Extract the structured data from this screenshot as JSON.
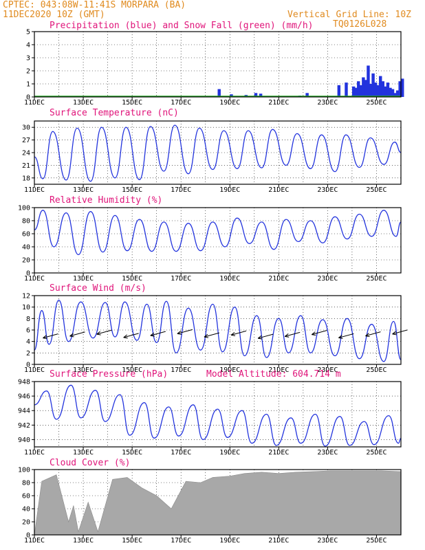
{
  "header": {
    "line1": "CPTEC:  043:08W-11:41S  MORPARA (BA)",
    "date": "11DEC2020 10Z (GMT)",
    "grid_note": "Vertical Grid Line: 10Z",
    "code": "TQ0126L028"
  },
  "x_ticks": [
    "11DEC",
    "13DEC",
    "15DEC",
    "17DEC",
    "19DEC",
    "21DEC",
    "23DEC",
    "25DEC"
  ],
  "panels": {
    "precip": {
      "title": "Precipitation (blue) and Snow Fall (green) (mm/h)",
      "yticks": [
        0,
        1,
        2,
        3,
        4,
        5
      ]
    },
    "temp": {
      "title": "Surface Temperature (nC)",
      "yticks": [
        18,
        21,
        24,
        27,
        30
      ]
    },
    "rh": {
      "title": "Relative Humidity (%)",
      "yticks": [
        0,
        20,
        40,
        60,
        80,
        100
      ]
    },
    "wind": {
      "title": "Surface Wind (m/s)",
      "yticks": [
        0,
        2,
        4,
        6,
        8,
        10,
        12
      ]
    },
    "pres": {
      "title": "Surface Pressure (hPa)",
      "altitude": "Model Altitude: 604.714 m",
      "yticks": [
        940,
        942,
        944,
        946,
        948
      ]
    },
    "cloud": {
      "title": "Cloud Cover (%)",
      "yticks": [
        0,
        20,
        40,
        60,
        80,
        100
      ]
    }
  },
  "chart_data": [
    {
      "type": "bar",
      "title": "Precipitation (blue) and Snow Fall (green) (mm/h)",
      "ylim": [
        0,
        5
      ],
      "x_days": [
        7.5,
        8.0,
        8.6,
        9.0,
        9.2,
        10.8,
        11.1,
        12.4,
        12.7,
        13.0,
        13.1,
        13.2,
        13.3,
        13.4,
        13.5,
        13.6,
        13.7,
        13.8,
        13.9,
        14.0,
        14.1,
        14.2,
        14.3,
        14.4,
        14.5,
        14.6,
        14.7,
        14.8,
        14.9,
        15.0
      ],
      "values": [
        0.6,
        0.2,
        0.15,
        0.3,
        0.25,
        0.1,
        0.3,
        0.9,
        1.1,
        0.8,
        0.7,
        1.2,
        0.9,
        1.5,
        1.3,
        2.4,
        1.0,
        1.8,
        1.1,
        0.9,
        1.6,
        1.2,
        0.8,
        1.1,
        0.7,
        0.6,
        0.3,
        0.5,
        1.2,
        1.4
      ]
    },
    {
      "type": "line",
      "title": "Surface Temperature (nC)",
      "ylim": [
        16.5,
        31.5
      ],
      "points": [
        [
          0,
          23
        ],
        [
          0.35,
          17.8
        ],
        [
          0.75,
          29
        ],
        [
          1.3,
          17.5
        ],
        [
          1.75,
          29.8
        ],
        [
          2.3,
          17.2
        ],
        [
          2.75,
          30
        ],
        [
          3.3,
          18
        ],
        [
          3.75,
          30
        ],
        [
          4.3,
          17.6
        ],
        [
          4.75,
          30.2
        ],
        [
          5.3,
          19.6
        ],
        [
          5.75,
          30.5
        ],
        [
          6.3,
          19
        ],
        [
          6.75,
          29.8
        ],
        [
          7.3,
          20
        ],
        [
          7.75,
          29.2
        ],
        [
          8.3,
          20.2
        ],
        [
          8.75,
          29.2
        ],
        [
          9.3,
          20.4
        ],
        [
          9.75,
          29.5
        ],
        [
          10.3,
          21
        ],
        [
          10.75,
          28.5
        ],
        [
          11.3,
          20.2
        ],
        [
          11.75,
          28.2
        ],
        [
          12.3,
          19.5
        ],
        [
          12.75,
          28.2
        ],
        [
          13.3,
          20.5
        ],
        [
          13.75,
          27.5
        ],
        [
          14.3,
          21.2
        ],
        [
          14.75,
          26.5
        ],
        [
          15.0,
          24
        ]
      ]
    },
    {
      "type": "line",
      "title": "Relative Humidity (%)",
      "ylim": [
        0,
        100
      ],
      "points": [
        [
          0,
          66
        ],
        [
          0.35,
          96
        ],
        [
          0.8,
          40
        ],
        [
          1.3,
          92
        ],
        [
          1.8,
          28
        ],
        [
          2.3,
          94
        ],
        [
          2.8,
          32
        ],
        [
          3.3,
          88
        ],
        [
          3.8,
          34
        ],
        [
          4.3,
          82
        ],
        [
          4.8,
          33
        ],
        [
          5.3,
          78
        ],
        [
          5.8,
          33
        ],
        [
          6.3,
          76
        ],
        [
          6.8,
          34
        ],
        [
          7.3,
          78
        ],
        [
          7.8,
          40
        ],
        [
          8.3,
          84
        ],
        [
          8.8,
          45
        ],
        [
          9.3,
          78
        ],
        [
          9.8,
          36
        ],
        [
          10.3,
          82
        ],
        [
          10.8,
          48
        ],
        [
          11.3,
          80
        ],
        [
          11.8,
          46
        ],
        [
          12.3,
          86
        ],
        [
          12.8,
          52
        ],
        [
          13.3,
          90
        ],
        [
          13.8,
          56
        ],
        [
          14.3,
          96
        ],
        [
          14.8,
          56
        ],
        [
          15.0,
          78
        ]
      ]
    },
    {
      "type": "line",
      "title": "Surface Wind (m/s)",
      "ylim": [
        0,
        12
      ],
      "points": [
        [
          0,
          2.5
        ],
        [
          0.3,
          9.4
        ],
        [
          0.6,
          3.5
        ],
        [
          1.0,
          11.2
        ],
        [
          1.4,
          4.0
        ],
        [
          1.9,
          10.9
        ],
        [
          2.4,
          4.6
        ],
        [
          2.9,
          10.8
        ],
        [
          3.3,
          4.8
        ],
        [
          3.7,
          10.9
        ],
        [
          4.2,
          4.2
        ],
        [
          4.6,
          10.5
        ],
        [
          5.0,
          3.8
        ],
        [
          5.4,
          11.0
        ],
        [
          5.8,
          2.0
        ],
        [
          6.3,
          9.8
        ],
        [
          6.8,
          2.5
        ],
        [
          7.3,
          10.5
        ],
        [
          7.7,
          2.2
        ],
        [
          8.2,
          10.0
        ],
        [
          8.6,
          1.5
        ],
        [
          9.1,
          8.5
        ],
        [
          9.5,
          1.2
        ],
        [
          10.0,
          8.0
        ],
        [
          10.4,
          2.0
        ],
        [
          10.9,
          8.5
        ],
        [
          11.3,
          2.0
        ],
        [
          11.8,
          7.8
        ],
        [
          12.3,
          1.5
        ],
        [
          12.8,
          8.0
        ],
        [
          13.3,
          1.0
        ],
        [
          13.8,
          7.0
        ],
        [
          14.3,
          0.5
        ],
        [
          14.7,
          7.5
        ],
        [
          15.0,
          0.8
        ]
      ]
    },
    {
      "type": "line",
      "title": "Surface Pressure (hPa)",
      "ylim": [
        939,
        948
      ],
      "points": [
        [
          0,
          944.8
        ],
        [
          0.5,
          946.7
        ],
        [
          0.9,
          942.8
        ],
        [
          1.5,
          947.5
        ],
        [
          1.9,
          943.0
        ],
        [
          2.5,
          946.8
        ],
        [
          2.9,
          942.5
        ],
        [
          3.5,
          946.2
        ],
        [
          3.9,
          940.6
        ],
        [
          4.5,
          945.1
        ],
        [
          4.9,
          940.2
        ],
        [
          5.5,
          944.5
        ],
        [
          5.9,
          940.5
        ],
        [
          6.5,
          944.8
        ],
        [
          6.9,
          940.0
        ],
        [
          7.5,
          944.2
        ],
        [
          7.9,
          940.3
        ],
        [
          8.5,
          944.0
        ],
        [
          8.9,
          939.5
        ],
        [
          9.5,
          943.5
        ],
        [
          9.9,
          939.2
        ],
        [
          10.5,
          943.0
        ],
        [
          10.9,
          939.5
        ],
        [
          11.5,
          943.5
        ],
        [
          11.9,
          939.1
        ],
        [
          12.5,
          943.2
        ],
        [
          12.9,
          939.2
        ],
        [
          13.5,
          942.5
        ],
        [
          13.9,
          939.3
        ],
        [
          14.5,
          943.3
        ],
        [
          14.9,
          939.5
        ],
        [
          15.0,
          940.2
        ]
      ]
    },
    {
      "type": "area",
      "title": "Cloud Cover (%)",
      "ylim": [
        0,
        100
      ],
      "points": [
        [
          0,
          0
        ],
        [
          0.3,
          82
        ],
        [
          0.9,
          92
        ],
        [
          1.4,
          20
        ],
        [
          1.6,
          45
        ],
        [
          1.8,
          5
        ],
        [
          2.2,
          50
        ],
        [
          2.6,
          5
        ],
        [
          3.2,
          85
        ],
        [
          3.8,
          88
        ],
        [
          4.4,
          72
        ],
        [
          5.0,
          60
        ],
        [
          5.6,
          40
        ],
        [
          6.2,
          82
        ],
        [
          6.8,
          80
        ],
        [
          7.3,
          88
        ],
        [
          8.0,
          90
        ],
        [
          8.6,
          94
        ],
        [
          9.3,
          96
        ],
        [
          10.0,
          94
        ],
        [
          10.7,
          96
        ],
        [
          11.4,
          97
        ],
        [
          12.1,
          98
        ],
        [
          12.8,
          98
        ],
        [
          13.5,
          98
        ],
        [
          14.2,
          98
        ],
        [
          15.0,
          97
        ]
      ]
    }
  ]
}
